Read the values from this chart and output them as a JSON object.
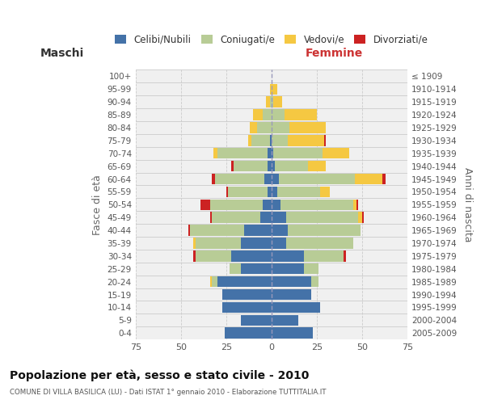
{
  "age_groups": [
    "0-4",
    "5-9",
    "10-14",
    "15-19",
    "20-24",
    "25-29",
    "30-34",
    "35-39",
    "40-44",
    "45-49",
    "50-54",
    "55-59",
    "60-64",
    "65-69",
    "70-74",
    "75-79",
    "80-84",
    "85-89",
    "90-94",
    "95-99",
    "100+"
  ],
  "birth_years": [
    "2005-2009",
    "2000-2004",
    "1995-1999",
    "1990-1994",
    "1985-1989",
    "1980-1984",
    "1975-1979",
    "1970-1974",
    "1965-1969",
    "1960-1964",
    "1955-1959",
    "1950-1954",
    "1945-1949",
    "1940-1944",
    "1935-1939",
    "1930-1934",
    "1925-1929",
    "1920-1924",
    "1915-1919",
    "1910-1914",
    "≤ 1909"
  ],
  "maschi": {
    "celibi": [
      26,
      17,
      27,
      27,
      30,
      17,
      22,
      17,
      15,
      6,
      5,
      2,
      4,
      2,
      2,
      1,
      0,
      0,
      0,
      0,
      0
    ],
    "coniugati": [
      0,
      0,
      0,
      0,
      3,
      6,
      20,
      25,
      30,
      27,
      29,
      22,
      27,
      19,
      28,
      10,
      8,
      5,
      1,
      0,
      0
    ],
    "vedovi": [
      0,
      0,
      0,
      0,
      1,
      0,
      0,
      1,
      0,
      0,
      0,
      0,
      0,
      0,
      2,
      2,
      4,
      5,
      2,
      1,
      0
    ],
    "divorziati": [
      0,
      0,
      0,
      0,
      0,
      0,
      1,
      0,
      1,
      1,
      5,
      1,
      2,
      1,
      0,
      0,
      0,
      0,
      0,
      0,
      0
    ]
  },
  "femmine": {
    "nubili": [
      23,
      15,
      27,
      22,
      22,
      18,
      18,
      8,
      9,
      8,
      5,
      3,
      4,
      2,
      1,
      0,
      0,
      0,
      0,
      0,
      0
    ],
    "coniugate": [
      0,
      0,
      0,
      0,
      4,
      8,
      22,
      37,
      40,
      40,
      40,
      24,
      42,
      18,
      27,
      9,
      10,
      7,
      1,
      0,
      0
    ],
    "vedove": [
      0,
      0,
      0,
      0,
      0,
      0,
      0,
      0,
      0,
      2,
      2,
      5,
      15,
      10,
      15,
      20,
      20,
      18,
      5,
      3,
      0
    ],
    "divorziate": [
      0,
      0,
      0,
      0,
      0,
      0,
      1,
      0,
      0,
      1,
      1,
      0,
      2,
      0,
      0,
      1,
      0,
      0,
      0,
      0,
      0
    ]
  },
  "colors": {
    "celibi": "#4472a8",
    "coniugati": "#b8cc96",
    "vedovi": "#f5c842",
    "divorziati": "#cc2222"
  },
  "xlim": 75,
  "xlabel_maschi": "Maschi",
  "xlabel_femmine": "Femmine",
  "ylabel": "Fasce di età",
  "ylabel_right": "Anni di nascita",
  "title": "Popolazione per età, sesso e stato civile - 2010",
  "subtitle": "COMUNE DI VILLA BASILICA (LU) - Dati ISTAT 1° gennaio 2010 - Elaborazione TUTTITALIA.IT",
  "legend_labels": [
    "Celibi/Nubili",
    "Coniugati/e",
    "Vedovi/e",
    "Divorziati/e"
  ],
  "background_color": "#f0f0f0",
  "grid_color": "#cccccc"
}
